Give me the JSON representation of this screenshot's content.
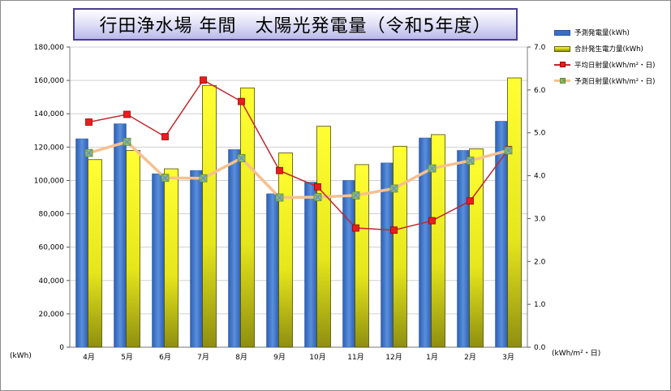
{
  "title": "行田浄水場 年間　太陽光発電量（令和5年度）",
  "axis": {
    "left_unit": "(kWh)",
    "right_unit": "(kWh/m²・日)"
  },
  "colors": {
    "predicted_power": "#3a6fc4",
    "actual_power_top": "#ffff33",
    "actual_power_bottom": "#8f8f10",
    "avg_radiation": "#c0282d",
    "avg_radiation_marker": "#e81e1e",
    "pred_radiation": "#f7c08f",
    "pred_radiation_marker": "#8fc06a",
    "grid": "#d0d0d0",
    "title_border": "#4b3d8f"
  },
  "chart_data": {
    "type": "bar",
    "title": "行田浄水場 年間　太陽光発電量（令和5年度）",
    "categories": [
      "4月",
      "5月",
      "6月",
      "7月",
      "8月",
      "9月",
      "10月",
      "11月",
      "12月",
      "1月",
      "2月",
      "3月"
    ],
    "y_left": {
      "label": "(kWh)",
      "min": 0,
      "max": 180000,
      "step": 20000,
      "ticks": [
        "0",
        "20,000",
        "40,000",
        "60,000",
        "80,000",
        "100,000",
        "120,000",
        "140,000",
        "160,000",
        "180,000"
      ]
    },
    "y_right": {
      "label": "(kWh/m²・日)",
      "min": 0,
      "max": 7,
      "step": 1,
      "ticks": [
        "0.0",
        "1.0",
        "2.0",
        "3.0",
        "4.0",
        "5.0",
        "6.0",
        "7.0"
      ]
    },
    "grid": true,
    "legend_position": "right",
    "series": [
      {
        "name": "予測発電量(kWh)",
        "type": "bar",
        "axis": "left",
        "values": [
          125000,
          134000,
          104000,
          106000,
          118500,
          92000,
          99000,
          100000,
          110500,
          125500,
          118000,
          135500
        ]
      },
      {
        "name": "合計発生電力量(kWh)",
        "type": "bar",
        "axis": "left",
        "values": [
          112500,
          118000,
          107000,
          157000,
          155500,
          116500,
          132500,
          109500,
          120500,
          127500,
          119000,
          161500
        ]
      },
      {
        "name": "平均日射量(kWh/m²・日)",
        "type": "line",
        "axis": "right",
        "values": [
          5.25,
          5.43,
          4.91,
          6.23,
          5.73,
          4.12,
          3.74,
          2.78,
          2.73,
          2.95,
          3.41,
          4.61
        ]
      },
      {
        "name": "予測日射量(kWh/m²・日)",
        "type": "line",
        "axis": "right",
        "values": [
          4.53,
          4.79,
          3.95,
          3.94,
          4.41,
          3.49,
          3.5,
          3.54,
          3.7,
          4.17,
          4.35,
          4.59
        ]
      }
    ]
  }
}
